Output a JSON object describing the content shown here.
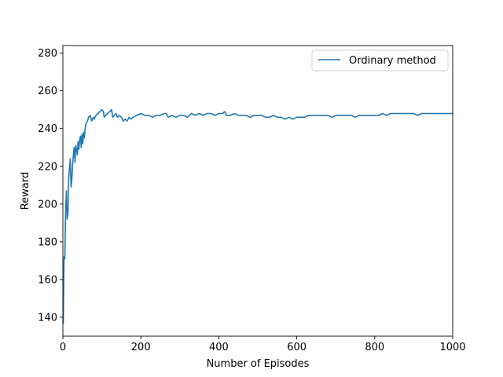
{
  "chart_data": {
    "type": "line",
    "title": "",
    "xlabel": "Number of Episodes",
    "ylabel": "Reward",
    "xlim": [
      0,
      1000
    ],
    "ylim": [
      130,
      284
    ],
    "xticks": [
      0,
      200,
      400,
      600,
      800,
      1000
    ],
    "yticks": [
      140,
      160,
      180,
      200,
      220,
      240,
      260,
      280
    ],
    "grid": false,
    "legend_position": "top-right",
    "series": [
      {
        "name": "Ordinary method",
        "color": "#1f77b4",
        "x": [
          1,
          3,
          5,
          7,
          9,
          11,
          13,
          15,
          17,
          19,
          21,
          23,
          25,
          27,
          29,
          31,
          33,
          35,
          37,
          39,
          41,
          43,
          45,
          47,
          49,
          51,
          53,
          55,
          57,
          60,
          63,
          66,
          70,
          74,
          78,
          80,
          85,
          90,
          95,
          100,
          104,
          106,
          110,
          115,
          120,
          125,
          128,
          132,
          136,
          140,
          145,
          150,
          155,
          160,
          165,
          170,
          175,
          180,
          190,
          200,
          210,
          220,
          230,
          240,
          250,
          260,
          265,
          270,
          280,
          290,
          300,
          310,
          320,
          330,
          340,
          350,
          360,
          370,
          380,
          390,
          400,
          410,
          415,
          420,
          430,
          440,
          450,
          460,
          470,
          480,
          490,
          500,
          510,
          520,
          530,
          540,
          550,
          560,
          570,
          580,
          590,
          600,
          610,
          620,
          630,
          640,
          650,
          660,
          670,
          680,
          690,
          700,
          710,
          720,
          730,
          740,
          750,
          760,
          770,
          780,
          790,
          800,
          810,
          820,
          830,
          840,
          850,
          860,
          870,
          880,
          890,
          900,
          910,
          920,
          930,
          940,
          950,
          960,
          970,
          980,
          990,
          1000
        ],
        "y": [
          137,
          172,
          171,
          196,
          207,
          192,
          195,
          214,
          219,
          224,
          209,
          213,
          221,
          226,
          230,
          222,
          231,
          229,
          226,
          233,
          229,
          234,
          236,
          230,
          237,
          232,
          238,
          235,
          240,
          243,
          244,
          246,
          247,
          244,
          246,
          245,
          247,
          248,
          249,
          250,
          249,
          246,
          247,
          248,
          249,
          250,
          246,
          247,
          248,
          246,
          247,
          246,
          244,
          245,
          244,
          246,
          245,
          246,
          247,
          248,
          247,
          247,
          246,
          247,
          247,
          248,
          248,
          246,
          247,
          246,
          247,
          247,
          246,
          248,
          247,
          248,
          247,
          248,
          248,
          247,
          248,
          248,
          249,
          247,
          247,
          248,
          247,
          247,
          247,
          246,
          247,
          247,
          247,
          246,
          246,
          247,
          246,
          246,
          245,
          246,
          245,
          246,
          246,
          246,
          247,
          247,
          247,
          247,
          247,
          247,
          246,
          247,
          247,
          247,
          247,
          247,
          246,
          247,
          247,
          247,
          247,
          247,
          247,
          248,
          247,
          248,
          248,
          248,
          248,
          248,
          248,
          248,
          247,
          248,
          248,
          248,
          248,
          248,
          248,
          248,
          248,
          248
        ]
      }
    ]
  }
}
